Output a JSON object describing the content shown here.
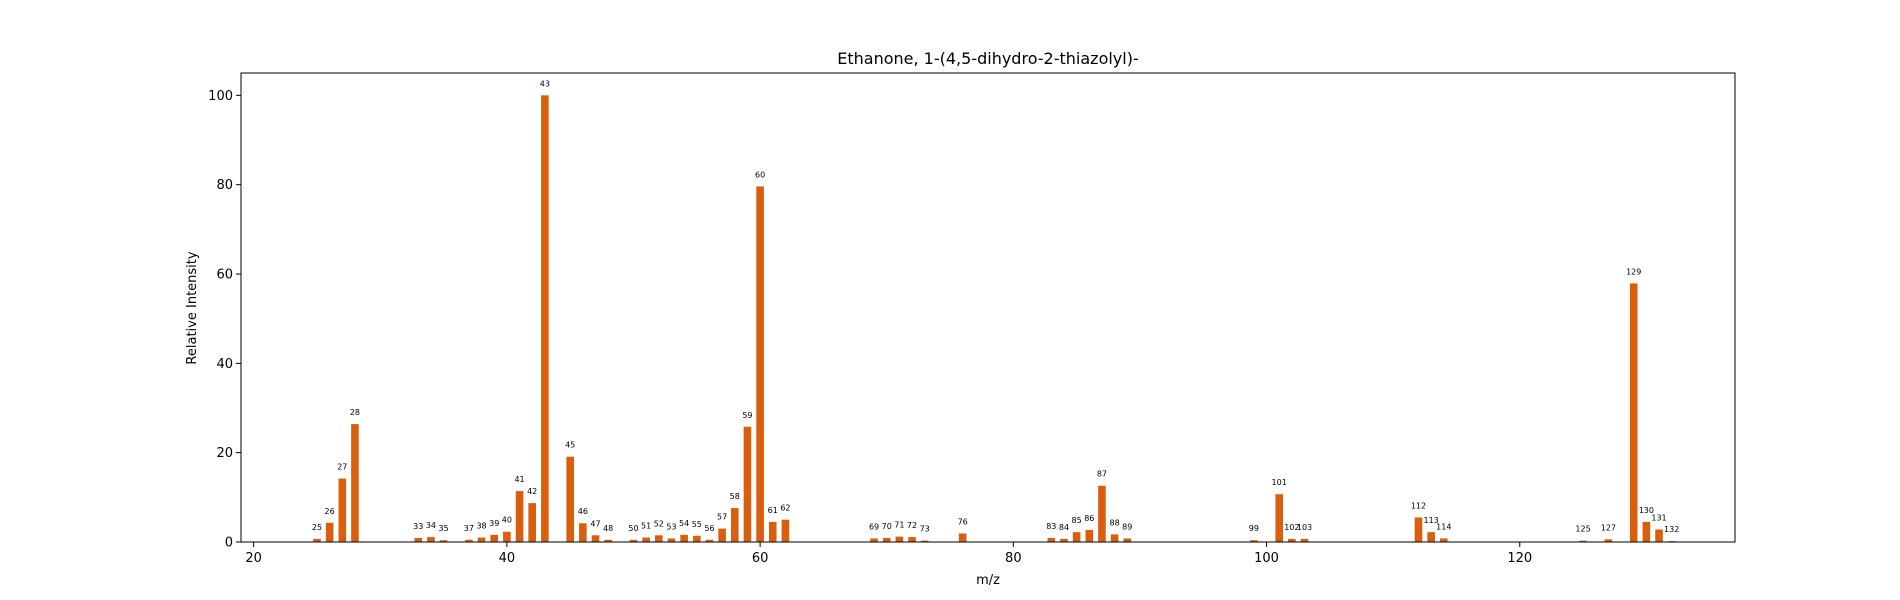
{
  "chart_data": {
    "type": "bar",
    "title": "Ethanone, 1-(4,5-dihydro-2-thiazolyl)-",
    "xlabel": "m/z",
    "ylabel": "Relative Intensity",
    "xlim": [
      19,
      137
    ],
    "ylim": [
      0,
      105
    ],
    "xticks": [
      20,
      40,
      60,
      80,
      100,
      120
    ],
    "yticks": [
      0,
      20,
      40,
      60,
      80,
      100
    ],
    "grid": false,
    "bar_color": "#d95f0e",
    "x": [
      25,
      26,
      27,
      28,
      33,
      34,
      35,
      37,
      38,
      39,
      40,
      41,
      42,
      43,
      45,
      46,
      47,
      48,
      50,
      51,
      52,
      53,
      54,
      55,
      56,
      57,
      58,
      59,
      60,
      61,
      62,
      69,
      70,
      71,
      72,
      73,
      76,
      83,
      84,
      85,
      86,
      87,
      88,
      89,
      99,
      101,
      102,
      103,
      112,
      113,
      114,
      125,
      127,
      129,
      130,
      131,
      132
    ],
    "values": [
      0.7,
      4.3,
      14.2,
      26.4,
      0.9,
      1.1,
      0.4,
      0.5,
      1.0,
      1.6,
      2.3,
      11.4,
      8.7,
      100.0,
      19.1,
      4.2,
      1.5,
      0.5,
      0.5,
      1.0,
      1.5,
      0.8,
      1.6,
      1.4,
      0.5,
      3.0,
      7.6,
      25.8,
      79.6,
      4.5,
      5.0,
      0.8,
      0.9,
      1.2,
      1.1,
      0.3,
      1.9,
      0.9,
      0.7,
      2.2,
      2.7,
      12.6,
      1.7,
      0.8,
      0.4,
      10.7,
      0.7,
      0.7,
      5.5,
      2.2,
      0.8,
      0.3,
      0.6,
      57.9,
      4.5,
      2.8,
      0.2
    ],
    "labels": [
      "25",
      "26",
      "27",
      "28",
      "33",
      "34",
      "35",
      "37",
      "38",
      "39",
      "40",
      "41",
      "42",
      "43",
      "45",
      "46",
      "47",
      "48",
      "50",
      "51",
      "52",
      "53",
      "54",
      "55",
      "56",
      "57",
      "58",
      "59",
      "60",
      "61",
      "62",
      "69",
      "70",
      "71",
      "72",
      "73",
      "76",
      "83",
      "84",
      "85",
      "86",
      "87",
      "88",
      "89",
      "99",
      "101",
      "102",
      "103",
      "112",
      "113",
      "114",
      "125",
      "127",
      "129",
      "130",
      "131",
      "132"
    ]
  }
}
